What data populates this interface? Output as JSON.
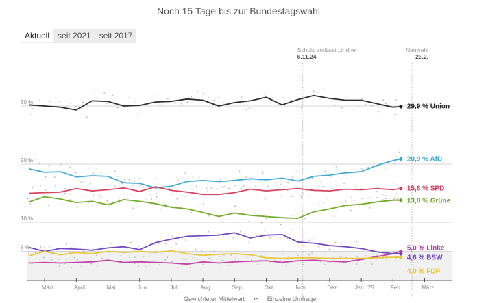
{
  "header": {
    "title": "Noch 15 Tage bis zur Bundestagswahl"
  },
  "tabs": [
    {
      "label": "Aktuell",
      "active": true
    },
    {
      "label": "seit 2021",
      "active": false
    },
    {
      "label": "seit 2017",
      "active": false
    }
  ],
  "legend": {
    "mean_label": "Gewichteter Mittelwert",
    "polls_label": "Einzelne Umfragen"
  },
  "chart_data": {
    "type": "line",
    "title": "Noch 15 Tage bis zur Bundestagswahl",
    "xlabel": "",
    "ylabel": "",
    "ylim": [
      0,
      34
    ],
    "y_ticks": [
      {
        "value": 30,
        "label": "30 %"
      },
      {
        "value": 20,
        "label": "20 %"
      },
      {
        "value": 10,
        "label": "10 %"
      },
      {
        "value": 5,
        "label": "5 %"
      }
    ],
    "threshold": 5,
    "x_range_months": [
      0,
      13
    ],
    "x_ticks": [
      {
        "month": 0.5,
        "label": "März"
      },
      {
        "month": 1.5,
        "label": "April"
      },
      {
        "month": 2.5,
        "label": "Mai"
      },
      {
        "month": 3.5,
        "label": "Juni"
      },
      {
        "month": 4.5,
        "label": "Juli"
      },
      {
        "month": 5.5,
        "label": "Aug."
      },
      {
        "month": 6.5,
        "label": "Sep."
      },
      {
        "month": 7.5,
        "label": "Okt."
      },
      {
        "month": 8.5,
        "label": "Nov."
      },
      {
        "month": 9.5,
        "label": "Dez."
      },
      {
        "month": 10.5,
        "label": "Jan. '25"
      },
      {
        "month": 11.5,
        "label": "Feb."
      },
      {
        "month": 12.5,
        "label": "März"
      }
    ],
    "annotations": [
      {
        "month": 8.65,
        "label": "Scholz entlässt Lindner",
        "date": "6.11.24",
        "align": "left"
      },
      {
        "month": 12.1,
        "label": "Neuwahl",
        "date": "23.2.",
        "align": "right"
      }
    ],
    "x": [
      0,
      0.5,
      1,
      1.5,
      2,
      2.5,
      3,
      3.5,
      4,
      4.5,
      5,
      5.5,
      6,
      6.5,
      7,
      7.5,
      8,
      8.5,
      9,
      9.5,
      10,
      10.5,
      11,
      11.5,
      11.75
    ],
    "series": [
      {
        "name": "Union",
        "color": "#222222",
        "final": "29,9",
        "values": [
          30.2,
          30.0,
          29.8,
          29.3,
          30.9,
          30.8,
          30.0,
          30.1,
          30.7,
          30.8,
          31.2,
          31.0,
          30.0,
          30.6,
          30.9,
          31.5,
          30.2,
          31.1,
          31.8,
          31.3,
          31.0,
          31.0,
          30.4,
          29.8,
          29.9
        ]
      },
      {
        "name": "AfD",
        "color": "#3aa6d4",
        "final": "20,9",
        "values": [
          19.2,
          18.6,
          18.7,
          17.8,
          18.0,
          17.9,
          16.8,
          16.7,
          15.9,
          16.2,
          17.0,
          17.2,
          17.0,
          17.2,
          17.5,
          17.3,
          17.6,
          17.1,
          17.9,
          18.1,
          18.5,
          18.7,
          19.8,
          20.6,
          20.9
        ]
      },
      {
        "name": "SPD",
        "color": "#d43a5a",
        "final": "15,8",
        "values": [
          15.0,
          15.1,
          15.2,
          15.8,
          15.4,
          15.6,
          15.9,
          15.3,
          16.1,
          15.5,
          15.2,
          14.8,
          14.8,
          15.1,
          15.7,
          15.4,
          15.6,
          15.8,
          15.5,
          15.4,
          15.7,
          15.6,
          15.8,
          15.6,
          15.8
        ]
      },
      {
        "name": "Grüne",
        "color": "#6aa81e",
        "final": "13,8",
        "values": [
          13.5,
          14.4,
          14.0,
          13.4,
          13.6,
          13.0,
          13.9,
          13.6,
          13.2,
          12.6,
          12.3,
          11.7,
          11.0,
          11.6,
          11.2,
          11.0,
          10.8,
          10.7,
          11.8,
          12.3,
          12.9,
          13.1,
          13.5,
          13.8,
          13.8
        ]
      },
      {
        "name": "Linke",
        "color": "#c03aa0",
        "final": "5,0",
        "values": [
          3.0,
          3.1,
          3.0,
          3.1,
          3.2,
          3.5,
          3.1,
          3.2,
          3.1,
          3.0,
          2.8,
          3.2,
          3.0,
          3.2,
          3.3,
          3.4,
          3.1,
          3.4,
          3.5,
          3.3,
          3.2,
          3.6,
          4.1,
          4.6,
          5.0
        ]
      },
      {
        "name": "BSW",
        "color": "#6a3fc2",
        "final": "4,6",
        "values": [
          5.7,
          5.0,
          5.5,
          5.4,
          5.2,
          5.6,
          5.8,
          5.3,
          6.5,
          7.1,
          7.6,
          7.7,
          7.8,
          8.2,
          7.3,
          7.8,
          7.9,
          6.6,
          6.4,
          6.0,
          5.8,
          5.5,
          4.9,
          4.6,
          4.6
        ]
      },
      {
        "name": "FDP",
        "color": "#e8c630",
        "final": "4,0",
        "values": [
          4.2,
          5.0,
          4.4,
          4.8,
          4.6,
          5.0,
          4.8,
          5.0,
          4.8,
          5.1,
          4.6,
          4.3,
          4.5,
          4.6,
          4.4,
          3.9,
          3.8,
          3.9,
          3.9,
          3.8,
          3.8,
          3.8,
          3.9,
          4.0,
          4.0
        ]
      }
    ]
  }
}
